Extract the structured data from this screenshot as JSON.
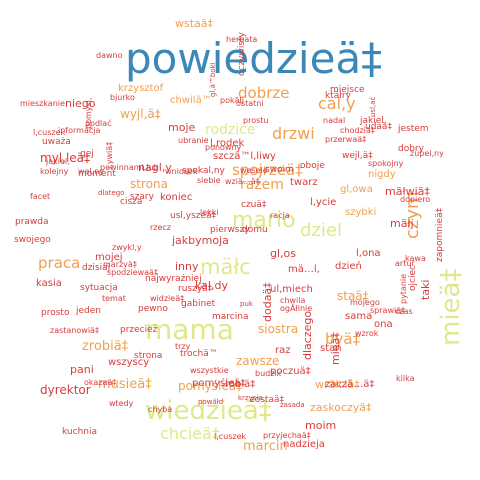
{
  "palette": {
    "blue": "#3a87b8",
    "yellow": "#e0e88a",
    "orange": "#f0a050",
    "peach": "#f6b073",
    "red": "#d83c3c",
    "dark": "#c02828"
  },
  "words": [
    {
      "text": "powiedzieä‡",
      "color": "blue",
      "v": false
    },
    {
      "text": "wiedzieä‡",
      "color": "yellow",
      "v": false
    },
    {
      "text": "mama",
      "color": "yellow",
      "v": false
    },
    {
      "text": "mieä‡",
      "color": "yellow",
      "v": true
    },
    {
      "text": "mario",
      "color": "yellow",
      "v": false
    },
    {
      "text": "mäłc",
      "color": "yellow",
      "v": false
    },
    {
      "text": "dziel",
      "color": "yellow",
      "v": false
    },
    {
      "text": "chcieä‡",
      "color": "yellow",
      "v": false
    },
    {
      "text": "czym",
      "color": "orange",
      "v": true
    },
    {
      "text": "cal,y",
      "color": "orange",
      "v": false
    },
    {
      "text": "drzwi",
      "color": "orange",
      "v": false
    },
    {
      "text": "rodzice",
      "color": "yellow",
      "v": false
    },
    {
      "text": "dobrze",
      "color": "orange",
      "v": false
    },
    {
      "text": "spojrzeä‡",
      "color": "orange",
      "v": false
    },
    {
      "text": "razem",
      "color": "orange",
      "v": false
    },
    {
      "text": "praca",
      "color": "orange",
      "v": false
    },
    {
      "text": "byä‡",
      "color": "orange",
      "v": false
    },
    {
      "text": "zrobiä‡",
      "color": "orange",
      "v": false
    },
    {
      "text": "musieä‡",
      "color": "orange",
      "v": false
    },
    {
      "text": "marcin",
      "color": "orange",
      "v": false
    },
    {
      "text": "moim",
      "color": "red",
      "v": false
    },
    {
      "text": "zawsze",
      "color": "orange",
      "v": false
    },
    {
      "text": "nadzieja",
      "color": "red",
      "v": false
    },
    {
      "text": "siostra",
      "color": "orange",
      "v": false
    },
    {
      "text": "wstaä‡",
      "color": "orange",
      "v": false
    },
    {
      "text": "wyjl,ä‡",
      "color": "orange",
      "v": false
    },
    {
      "text": "moje",
      "color": "red",
      "v": false
    },
    {
      "text": "strona",
      "color": "orange",
      "v": false
    },
    {
      "text": "koniec",
      "color": "red",
      "v": false
    },
    {
      "text": "staä‡",
      "color": "orange",
      "v": false
    },
    {
      "text": "szybki",
      "color": "orange",
      "v": false
    },
    {
      "text": "nigdy",
      "color": "orange",
      "v": false
    },
    {
      "text": "gl,owa",
      "color": "orange",
      "v": false
    },
    {
      "text": "chwilä™",
      "color": "orange",
      "v": false
    },
    {
      "text": "krzysztof",
      "color": "orange",
      "v": false
    },
    {
      "text": "pomyśleä‡",
      "color": "orange",
      "v": false
    },
    {
      "text": "zaskoczyä‡",
      "color": "orange",
      "v": false
    },
    {
      "text": "wrăłciä‡",
      "color": "orange",
      "v": false
    },
    {
      "text": "dyrektor",
      "color": "red",
      "v": false
    },
    {
      "text": "zaczä…ä‡",
      "color": "red",
      "v": false
    },
    {
      "text": "myl,leä‡",
      "color": "red",
      "v": false
    },
    {
      "text": "niego",
      "color": "red",
      "v": false
    },
    {
      "text": "jakbymoja",
      "color": "red",
      "v": false
    },
    {
      "text": "gl,os",
      "color": "red",
      "v": false
    },
    {
      "text": "inny",
      "color": "red",
      "v": false
    },
    {
      "text": "kal,dy",
      "color": "red",
      "v": false
    },
    {
      "text": "pani",
      "color": "red",
      "v": false
    },
    {
      "text": "wszyscy",
      "color": "red",
      "v": false
    },
    {
      "text": "ul,miech",
      "color": "red",
      "v": false
    },
    {
      "text": "twarz",
      "color": "red",
      "v": false
    },
    {
      "text": "l,ycie",
      "color": "red",
      "v": false
    },
    {
      "text": "mäłwiä‡",
      "color": "red",
      "v": false
    },
    {
      "text": "mäłj",
      "color": "red",
      "v": false
    },
    {
      "text": "szczä™l,liwy",
      "color": "red",
      "v": false
    },
    {
      "text": "raz",
      "color": "red",
      "v": false
    },
    {
      "text": "stan",
      "color": "red",
      "v": false
    },
    {
      "text": "kasia",
      "color": "red",
      "v": false
    },
    {
      "text": "mojej",
      "color": "red",
      "v": false
    },
    {
      "text": "strona",
      "color": "red",
      "v": false
    },
    {
      "text": "l,rodek",
      "color": "red",
      "v": false
    },
    {
      "text": "l,ona",
      "color": "red",
      "v": false
    },
    {
      "text": "sama",
      "color": "red",
      "v": false
    },
    {
      "text": "dzień",
      "color": "red",
      "v": false
    },
    {
      "text": "mä…l,",
      "color": "red",
      "v": false
    },
    {
      "text": "prawda",
      "color": "red",
      "v": false
    },
    {
      "text": "swojego",
      "color": "red",
      "v": false
    },
    {
      "text": "dlaczego",
      "color": "red",
      "v": true
    },
    {
      "text": "dodaä‡",
      "color": "red",
      "v": true
    },
    {
      "text": "taki",
      "color": "red",
      "v": true
    },
    {
      "text": "mieä‡",
      "color": "red",
      "v": true
    },
    {
      "text": "nagl,y",
      "color": "red",
      "v": false
    },
    {
      "text": "usl,yszeä‡",
      "color": "red",
      "v": false
    },
    {
      "text": "pomyśleä‡",
      "color": "red",
      "v": false
    },
    {
      "text": "zostaä‡",
      "color": "red",
      "v": false
    },
    {
      "text": "poczuä‡",
      "color": "red",
      "v": false
    },
    {
      "text": "robiä‡",
      "color": "red",
      "v": false
    },
    {
      "text": "ona",
      "color": "red",
      "v": false
    },
    {
      "text": "moment",
      "color": "red",
      "v": false
    },
    {
      "text": "ktăłry",
      "color": "red",
      "v": false
    },
    {
      "text": "miejsce",
      "color": "red",
      "v": false
    },
    {
      "text": "bjurko",
      "color": "red",
      "v": false
    },
    {
      "text": "pokăłj",
      "color": "red",
      "v": false
    },
    {
      "text": "dawno",
      "color": "red",
      "v": false
    },
    {
      "text": "pomysl,",
      "color": "red",
      "v": true
    },
    {
      "text": "l,ywiä‡",
      "color": "red",
      "v": true
    },
    {
      "text": "ponowny",
      "color": "red",
      "v": false
    },
    {
      "text": "wniosek",
      "color": "red",
      "v": false
    },
    {
      "text": "informacja",
      "color": "red",
      "v": false
    },
    {
      "text": "uważa",
      "color": "red",
      "v": false
    },
    {
      "text": "kolejny",
      "color": "red",
      "v": false
    },
    {
      "text": "wal,ny",
      "color": "red",
      "v": false
    },
    {
      "text": "facet",
      "color": "red",
      "v": false
    },
    {
      "text": "artur",
      "color": "red",
      "v": false
    },
    {
      "text": "pytanie",
      "color": "red",
      "v": true
    },
    {
      "text": "kawa",
      "color": "red",
      "v": false
    },
    {
      "text": "dopiero",
      "color": "red",
      "v": false
    },
    {
      "text": "zupel,ny",
      "color": "red",
      "v": false
    },
    {
      "text": "spokojny",
      "color": "red",
      "v": false
    },
    {
      "text": "ojciec",
      "color": "red",
      "v": true
    },
    {
      "text": "jestem",
      "color": "red",
      "v": false
    },
    {
      "text": "dobry",
      "color": "red",
      "v": false
    },
    {
      "text": "przerwaä‡",
      "color": "red",
      "v": false
    },
    {
      "text": "chodziä‡",
      "color": "red",
      "v": false
    },
    {
      "text": "nadal",
      "color": "red",
      "v": false
    },
    {
      "text": "prostu",
      "color": "red",
      "v": false
    },
    {
      "text": "ostatni",
      "color": "red",
      "v": false
    },
    {
      "text": "herbata",
      "color": "red",
      "v": false
    },
    {
      "text": "kuchnia",
      "color": "red",
      "v": false
    },
    {
      "text": "l,cuszek",
      "color": "red",
      "v": false
    },
    {
      "text": "przyjechaä‡",
      "color": "red",
      "v": false
    },
    {
      "text": "krzysia",
      "color": "red",
      "v": false
    },
    {
      "text": "zasada",
      "color": "red",
      "v": false
    },
    {
      "text": "budzik",
      "color": "red",
      "v": false
    },
    {
      "text": "trochä™",
      "color": "red",
      "v": false
    },
    {
      "text": "wtedy",
      "color": "red",
      "v": false
    },
    {
      "text": "powăłd",
      "color": "red",
      "v": false
    },
    {
      "text": "okazaä‡",
      "color": "red",
      "v": false
    },
    {
      "text": "jeden",
      "color": "red",
      "v": false
    },
    {
      "text": "pewno",
      "color": "red",
      "v": false
    },
    {
      "text": "przecież",
      "color": "red",
      "v": false
    },
    {
      "text": "gabinet",
      "color": "red",
      "v": false
    },
    {
      "text": "marcina",
      "color": "red",
      "v": false
    },
    {
      "text": "najwyraźniej",
      "color": "red",
      "v": false
    },
    {
      "text": "ruszyä‡",
      "color": "red",
      "v": false
    },
    {
      "text": "pierwszy",
      "color": "red",
      "v": false
    },
    {
      "text": "domu",
      "color": "red",
      "v": false
    },
    {
      "text": "chwila",
      "color": "red",
      "v": false
    },
    {
      "text": "mojego",
      "color": "red",
      "v": false
    },
    {
      "text": "wzrok",
      "color": "red",
      "v": false
    },
    {
      "text": "sprawiä‡",
      "color": "red",
      "v": false
    },
    {
      "text": "racja",
      "color": "red",
      "v": false
    },
    {
      "text": "swoim",
      "color": "red",
      "v": false
    },
    {
      "text": "wesele",
      "color": "red",
      "v": false
    },
    {
      "text": "oboje",
      "color": "red",
      "v": false
    },
    {
      "text": "ubranie",
      "color": "red",
      "v": false
    },
    {
      "text": "spokal,ny",
      "color": "red",
      "v": false
    },
    {
      "text": "siebie",
      "color": "red",
      "v": false
    },
    {
      "text": "cisza",
      "color": "red",
      "v": false
    },
    {
      "text": "lekki",
      "color": "red",
      "v": false
    },
    {
      "text": "rzecz",
      "color": "red",
      "v": false
    },
    {
      "text": "gej",
      "color": "red",
      "v": false
    },
    {
      "text": "prosto",
      "color": "red",
      "v": false
    },
    {
      "text": "sytuacja",
      "color": "red",
      "v": false
    },
    {
      "text": "dzisiaj",
      "color": "red",
      "v": false
    },
    {
      "text": "chyba",
      "color": "red",
      "v": false
    },
    {
      "text": "puk",
      "color": "red",
      "v": false
    },
    {
      "text": "ogĂłlnie",
      "color": "red",
      "v": false
    },
    {
      "text": "czas",
      "color": "red",
      "v": false
    },
    {
      "text": "kilka",
      "color": "red",
      "v": false
    },
    {
      "text": "wszystkie",
      "color": "red",
      "v": false
    },
    {
      "text": "trzy",
      "color": "red",
      "v": false
    },
    {
      "text": "zwykl,y",
      "color": "red",
      "v": false
    },
    {
      "text": "temat",
      "color": "red",
      "v": false
    },
    {
      "text": "widzieä‡",
      "color": "red",
      "v": false
    },
    {
      "text": "spodziewaä‡",
      "color": "red",
      "v": false
    },
    {
      "text": "marzyä‡",
      "color": "red",
      "v": false
    },
    {
      "text": "zastanowiä‡",
      "color": "red",
      "v": false
    },
    {
      "text": "udaä‡",
      "color": "red",
      "v": false
    },
    {
      "text": "jakiel,",
      "color": "red",
      "v": false
    },
    {
      "text": "wejl,ä‡",
      "color": "red",
      "v": false
    },
    {
      "text": "szary",
      "color": "red",
      "v": false
    },
    {
      "text": "czuä‡",
      "color": "red",
      "v": false
    },
    {
      "text": "dlatego",
      "color": "red",
      "v": false
    },
    {
      "text": "powinnaml,lub",
      "color": "red",
      "v": false
    },
    {
      "text": "podlać",
      "color": "red",
      "v": false
    },
    {
      "text": "zapomnieä‡",
      "color": "red",
      "v": true
    },
    {
      "text": "usl,ać",
      "color": "red",
      "v": true
    },
    {
      "text": "gl,ä™boki",
      "color": "red",
      "v": true
    },
    {
      "text": "oczywisty",
      "color": "red",
      "v": true
    },
    {
      "text": "wziä…ä‡",
      "color": "red",
      "v": false
    },
    {
      "text": "mieszkanie",
      "color": "red",
      "v": false
    },
    {
      "text": "l,cuszek",
      "color": "red",
      "v": false
    },
    {
      "text": "jakiel,",
      "color": "red",
      "v": false
    }
  ]
}
